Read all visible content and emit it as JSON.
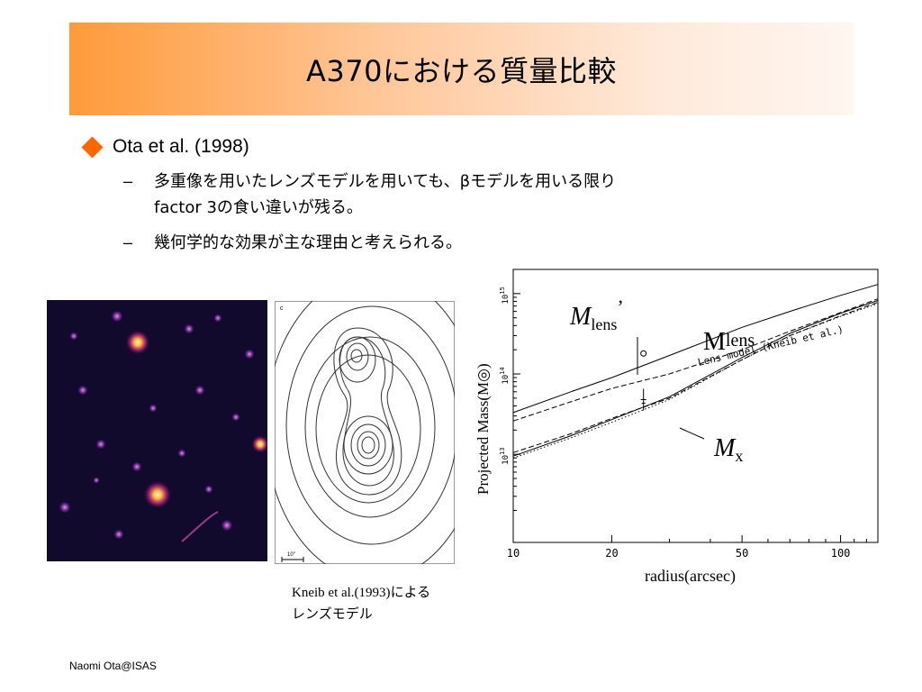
{
  "slide": {
    "title": "A370における質量比較",
    "bullet1": "Ota et al. (1998)",
    "sub1_line1": "多重像を用いたレンズモデルを用いても、βモデルを用いる限り",
    "sub1_line2": "factor 3の食い違いが残る。",
    "sub2": "幾何学的な効果が主な理由と考えられる。",
    "dash": "–",
    "footer": "Naomi Ota@ISAS"
  },
  "contour_panel": {
    "panel_label": "c",
    "scale_label": "10\""
  },
  "caption": {
    "ref": "Kneib et al.(1993)",
    "ref_suffix": "による",
    "line2": "レンズモデル"
  },
  "chart_data": {
    "type": "line",
    "xscale": "log",
    "yscale": "log",
    "xlim": [
      10,
      130
    ],
    "ylim": [
      800000000000,
      2000000000000000
    ],
    "xticks": [
      "10",
      "20",
      "50",
      "100"
    ],
    "yticks": [
      "10",
      "10",
      "10"
    ],
    "ytick_exps": [
      "13",
      "14",
      "15"
    ],
    "xlabel": "radius(arcsec)",
    "ylabel": "Projected Mass(M",
    "ylabel_sun": "◎",
    "ylabel_close": ")",
    "label_mlens_prime": "M",
    "label_mlens_prime_sub": "lens",
    "label_mlens_prime_sup": "’",
    "label_mlens": "M",
    "label_mlens_sub": "lens",
    "label_lens_model": "Lens model (Kneib et al.)",
    "label_mx": "M",
    "label_mx_sub": "x",
    "series": [
      {
        "name": "Lens model (Kneib et al.)",
        "style": "solid",
        "x": [
          10,
          15,
          20,
          30,
          50,
          70,
          100,
          130
        ],
        "y": [
          33000000000000.0,
          60000000000000.0,
          90000000000000.0,
          170000000000000.0,
          380000000000000.0,
          600000000000000.0,
          950000000000000.0,
          1300000000000000.0
        ]
      },
      {
        "style": "dashed",
        "x": [
          10,
          15,
          20,
          30,
          50,
          70,
          100,
          130
        ],
        "y": [
          26000000000000.0,
          45000000000000.0,
          66000000000000.0,
          100000000000000.0,
          200000000000000.0,
          340000000000000.0,
          580000000000000.0,
          860000000000000.0
        ]
      },
      {
        "style": "dashed",
        "x": [
          10,
          15,
          20,
          30,
          50,
          70,
          100,
          130
        ],
        "y": [
          10500000000000.0,
          18000000000000.0,
          28000000000000.0,
          50000000000000.0,
          150000000000000.0,
          300000000000000.0,
          530000000000000.0,
          780000000000000.0
        ]
      },
      {
        "style": "solid",
        "x": [
          10,
          15,
          20,
          30,
          50,
          70,
          100,
          130
        ],
        "y": [
          9500000000000.0,
          17000000000000.0,
          27000000000000.0,
          52000000000000.0,
          160000000000000.0,
          320000000000000.0,
          570000000000000.0,
          820000000000000.0
        ]
      },
      {
        "style": "dotted",
        "x": [
          10,
          15,
          20,
          30,
          50,
          70,
          100,
          130
        ],
        "y": [
          9000000000000.0,
          16000000000000.0,
          25000000000000.0,
          48000000000000.0,
          150000000000000.0,
          300000000000000.0,
          520000000000000.0,
          750000000000000.0
        ]
      }
    ],
    "points": [
      {
        "name": "Mlens'",
        "x": 25,
        "y": 180000000000000.0,
        "marker": "circle"
      },
      {
        "name": "Mx",
        "x": 25,
        "y": 48000000000000.0,
        "marker": "errorbar"
      }
    ]
  }
}
